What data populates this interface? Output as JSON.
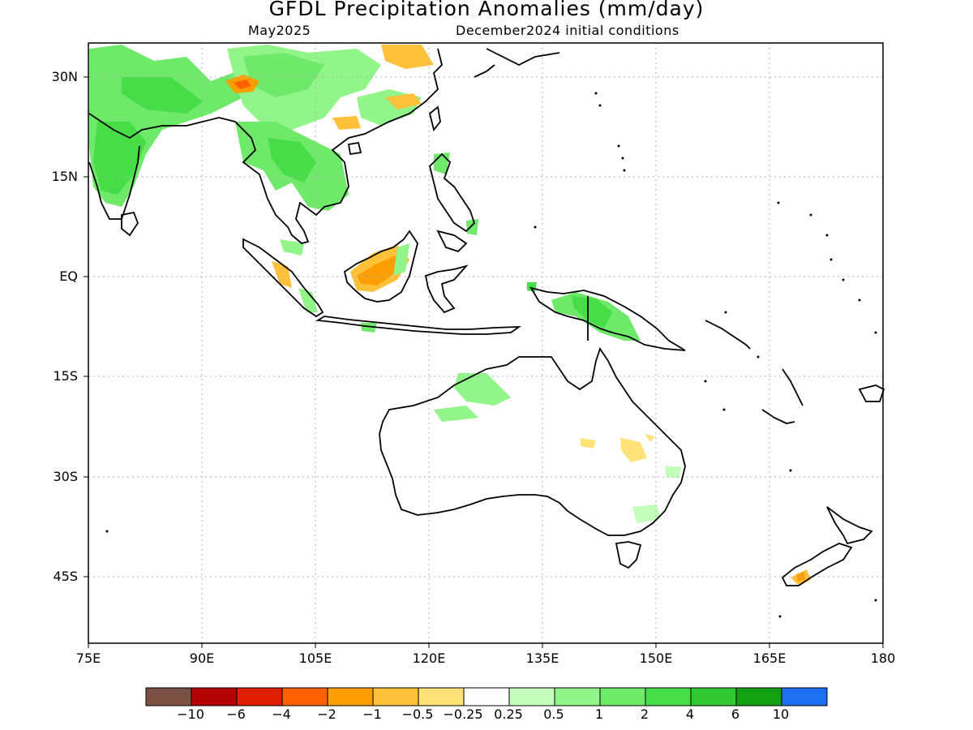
{
  "title": "GFDL Precipitation Anomalies (mm/day)",
  "valid_month": "May2025",
  "init_conditions": "December2024 initial conditions",
  "lat_labels": [
    "30N",
    "15N",
    "EQ",
    "15S",
    "30S",
    "45S"
  ],
  "lon_labels": [
    "75E",
    "90E",
    "105E",
    "120E",
    "135E",
    "150E",
    "165E",
    "180"
  ],
  "legend": {
    "colors": [
      "#7a5045",
      "#b40000",
      "#e01e00",
      "#ff6000",
      "#ff9e00",
      "#ffc03a",
      "#ffe37a",
      "#ffffff",
      "#c4ffbc",
      "#92f58a",
      "#6ee96a",
      "#46dd46",
      "#32c832",
      "#12a012",
      "#1e6ef0"
    ],
    "labels": [
      "-10",
      "-6",
      "-4",
      "-2",
      "-1",
      "-0.5",
      "-0.25",
      "0.25",
      "0.5",
      "1",
      "2",
      "4",
      "6",
      "10"
    ]
  },
  "map": {
    "lon_range": [
      75,
      180
    ],
    "lat_range": [
      -55,
      35
    ],
    "regions": "South / Southeast Asia, Maritime Continent, Australia, New Zealand, western Pacific",
    "anomalies": [
      {
        "area": "India / Tibetan Plateau / Southern China",
        "category": "0.5 to 2"
      },
      {
        "area": "Eastern Himalaya",
        "category": "-2 to -1"
      },
      {
        "area": "Indochina",
        "category": "0.5 to 2"
      },
      {
        "area": "Borneo",
        "category": "-2 to -0.5"
      },
      {
        "area": "New Guinea",
        "category": "1 to 4"
      },
      {
        "area": "Northern Australia",
        "category": "0.25 to 1"
      },
      {
        "area": "Eastern Australia interior",
        "category": "-0.5 to -0.25"
      },
      {
        "area": "New Zealand South Island",
        "category": "-2 to -0.5"
      }
    ]
  }
}
